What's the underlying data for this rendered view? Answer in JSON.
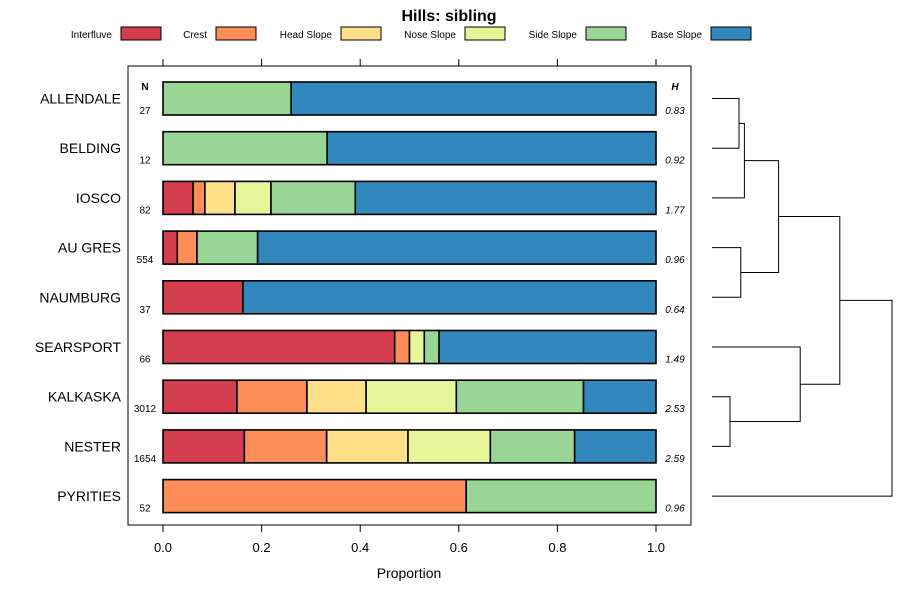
{
  "chart_data": {
    "type": "bar",
    "orientation": "horizontal",
    "stacked": true,
    "title": "Hills: sibling",
    "xlabel": "Proportion",
    "ylabel": "",
    "xlim": [
      0,
      1
    ],
    "xticks": [
      0.0,
      0.2,
      0.4,
      0.6,
      0.8,
      1.0
    ],
    "xtick_labels": [
      "0.0",
      "0.2",
      "0.4",
      "0.6",
      "0.8",
      "1.0"
    ],
    "legend_position": "top",
    "count_header": "N",
    "h_header": "H",
    "series": [
      {
        "name": "Interfluve",
        "color": "#d53e4f"
      },
      {
        "name": "Crest",
        "color": "#fc8d59"
      },
      {
        "name": "Head Slope",
        "color": "#fee08b"
      },
      {
        "name": "Nose Slope",
        "color": "#e6f598"
      },
      {
        "name": "Side Slope",
        "color": "#99d594"
      },
      {
        "name": "Base Slope",
        "color": "#3288bd"
      }
    ],
    "rows": [
      {
        "name": "ALLENDALE",
        "n": "27",
        "h": "0.83",
        "values": [
          0,
          0,
          0,
          0,
          0.26,
          0.74
        ]
      },
      {
        "name": "BELDING",
        "n": "12",
        "h": "0.92",
        "values": [
          0,
          0,
          0,
          0,
          0.333,
          0.667
        ]
      },
      {
        "name": "IOSCO",
        "n": "82",
        "h": "1.77",
        "values": [
          0.061,
          0.024,
          0.061,
          0.073,
          0.171,
          0.61
        ]
      },
      {
        "name": "AU GRES",
        "n": "554",
        "h": "0.96",
        "values": [
          0.029,
          0.04,
          0,
          0,
          0.123,
          0.808
        ]
      },
      {
        "name": "NAUMBURG",
        "n": "37",
        "h": "0.64",
        "values": [
          0.162,
          0,
          0,
          0,
          0,
          0.838
        ]
      },
      {
        "name": "SEARSPORT",
        "n": "66",
        "h": "1.49",
        "values": [
          0.47,
          0.03,
          0,
          0.03,
          0.03,
          0.44
        ]
      },
      {
        "name": "KALKASKA",
        "n": "3012",
        "h": "2.53",
        "values": [
          0.15,
          0.142,
          0.12,
          0.183,
          0.258,
          0.147
        ]
      },
      {
        "name": "NESTER",
        "n": "1654",
        "h": "2.59",
        "values": [
          0.165,
          0.167,
          0.165,
          0.167,
          0.171,
          0.165
        ]
      },
      {
        "name": "PYRITIES",
        "n": "52",
        "h": "0.96",
        "values": [
          0,
          0.615,
          0,
          0,
          0.385,
          0
        ]
      }
    ],
    "dendrogram": {
      "leaves": [
        "ALLENDALE",
        "BELDING",
        "IOSCO",
        "AU GRES",
        "NAUMBURG",
        "SEARSPORT",
        "KALKASKA",
        "NESTER",
        "PYRITIES"
      ],
      "merges": [
        {
          "left": "ALLENDALE",
          "right": "BELDING",
          "height": 0.15
        },
        {
          "left": "merge-1",
          "right": "IOSCO",
          "height": 0.18
        },
        {
          "left": "AU GRES",
          "right": "NAUMBURG",
          "height": 0.16
        },
        {
          "left": "merge-2",
          "right": "merge-3",
          "height": 0.37
        },
        {
          "left": "KALKASKA",
          "right": "NESTER",
          "height": 0.1
        },
        {
          "left": "SEARSPORT",
          "right": "merge-5",
          "height": 0.49
        },
        {
          "left": "merge-4",
          "right": "merge-6",
          "height": 0.71
        },
        {
          "left": "merge-7",
          "right": "PYRITIES",
          "height": 1.0
        }
      ]
    }
  }
}
